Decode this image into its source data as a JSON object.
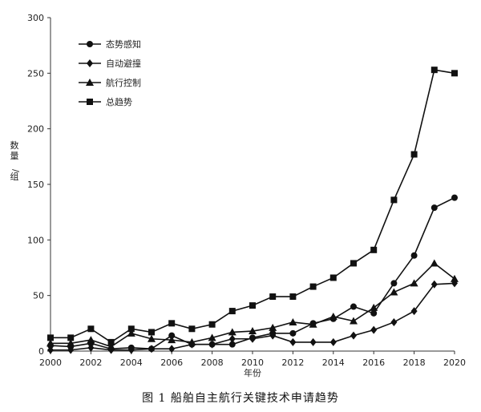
{
  "caption": "图 1   船舶自主航行关键技术申请趋势",
  "chart_data": {
    "type": "line",
    "title": "",
    "xlabel": "年份",
    "ylabel": "数量/组",
    "xlim": [
      2000,
      2020
    ],
    "ylim": [
      0,
      300
    ],
    "x_ticks": [
      2000,
      2002,
      2004,
      2006,
      2008,
      2010,
      2012,
      2014,
      2016,
      2018,
      2020
    ],
    "y_ticks": [
      0,
      50,
      100,
      150,
      200,
      250,
      300
    ],
    "legend_position": "top-left",
    "grid": false,
    "x": [
      2000,
      2001,
      2002,
      2003,
      2004,
      2005,
      2006,
      2007,
      2008,
      2009,
      2010,
      2011,
      2012,
      2013,
      2014,
      2015,
      2016,
      2017,
      2018,
      2019,
      2020
    ],
    "series": [
      {
        "name": "态势感知",
        "marker": "circle",
        "values": [
          5,
          4,
          7,
          2,
          3,
          2,
          14,
          6,
          6,
          6,
          12,
          16,
          16,
          25,
          29,
          40,
          34,
          61,
          86,
          129,
          138
        ]
      },
      {
        "name": "自动避撞",
        "marker": "diamond",
        "values": [
          1,
          1,
          3,
          1,
          1,
          2,
          2,
          6,
          6,
          11,
          11,
          14,
          8,
          8,
          8,
          14,
          19,
          26,
          36,
          60,
          61
        ]
      },
      {
        "name": "航行控制",
        "marker": "triangle",
        "values": [
          7,
          7,
          10,
          4,
          16,
          11,
          10,
          8,
          12,
          17,
          18,
          21,
          26,
          24,
          31,
          27,
          39,
          53,
          61,
          79,
          65
        ]
      },
      {
        "name": "总趋势",
        "marker": "square",
        "values": [
          12,
          12,
          20,
          8,
          20,
          17,
          25,
          20,
          24,
          36,
          41,
          49,
          49,
          58,
          66,
          79,
          91,
          136,
          177,
          253,
          250
        ]
      }
    ]
  }
}
